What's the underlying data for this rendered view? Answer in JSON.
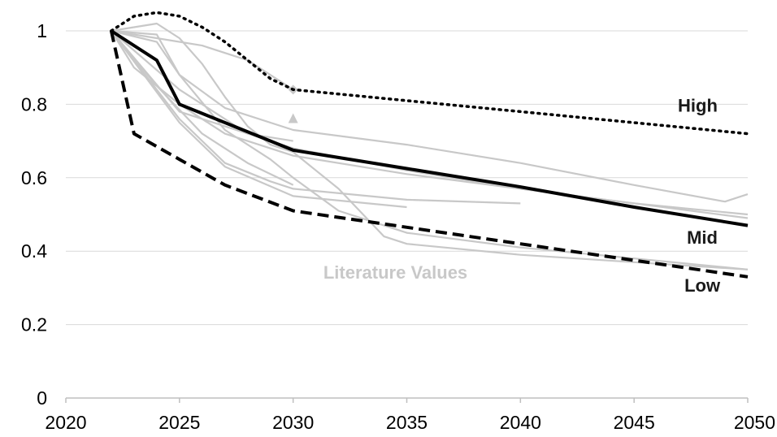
{
  "chart_data": {
    "type": "line",
    "title": "",
    "xlabel": "",
    "ylabel": "",
    "xlim": [
      2020,
      2050
    ],
    "ylim": [
      0,
      1
    ],
    "x_ticks": [
      2020,
      2025,
      2030,
      2035,
      2040,
      2045,
      2050
    ],
    "y_ticks": [
      0,
      0.2,
      0.4,
      0.6,
      0.8,
      1
    ],
    "x_tick_labels": [
      "2020",
      "2025",
      "2030",
      "2035",
      "2040",
      "2045",
      "2050"
    ],
    "y_tick_labels": [
      "0",
      "0.2",
      "0.4",
      "0.6",
      "0.8",
      "1"
    ],
    "grid": "horizontal",
    "colors": {
      "main": "#000000",
      "literature": "#c8c8c8",
      "grid": "#d9d9d9"
    },
    "series": [
      {
        "name": "High",
        "style": "dotted",
        "x": [
          2022,
          2023,
          2024,
          2025,
          2026,
          2027,
          2028,
          2029,
          2030,
          2035,
          2040,
          2045,
          2050
        ],
        "values": [
          1.0,
          1.04,
          1.05,
          1.04,
          1.01,
          0.97,
          0.92,
          0.87,
          0.84,
          0.81,
          0.78,
          0.75,
          0.72
        ]
      },
      {
        "name": "Mid",
        "style": "solid",
        "x": [
          2022,
          2024,
          2025,
          2027,
          2030,
          2035,
          2040,
          2045,
          2050
        ],
        "values": [
          1.0,
          0.92,
          0.8,
          0.75,
          0.675,
          0.625,
          0.575,
          0.52,
          0.47
        ]
      },
      {
        "name": "Low",
        "style": "dashed",
        "x": [
          2022,
          2023,
          2025,
          2027,
          2030,
          2035,
          2040,
          2045,
          2050
        ],
        "values": [
          1.0,
          0.72,
          0.65,
          0.58,
          0.51,
          0.465,
          0.42,
          0.375,
          0.33
        ]
      }
    ],
    "literature_label": "Literature Values",
    "literature_series": [
      {
        "x": [
          2022,
          2024,
          2025,
          2027,
          2030,
          2035,
          2040,
          2045,
          2049,
          2050
        ],
        "values": [
          1.0,
          0.99,
          0.88,
          0.79,
          0.73,
          0.69,
          0.64,
          0.58,
          0.535,
          0.555
        ]
      },
      {
        "x": [
          2022,
          2025,
          2030,
          2035,
          2040,
          2045,
          2050
        ],
        "values": [
          1.0,
          0.78,
          0.68,
          0.62,
          0.57,
          0.53,
          0.49
        ]
      },
      {
        "x": [
          2022,
          2024,
          2025,
          2026,
          2027,
          2028,
          2029,
          2030,
          2032,
          2034,
          2035,
          2040,
          2045,
          2050
        ],
        "values": [
          1.0,
          1.02,
          0.98,
          0.91,
          0.82,
          0.74,
          0.69,
          0.67,
          0.57,
          0.44,
          0.42,
          0.39,
          0.37,
          0.35
        ]
      },
      {
        "x": [
          2022,
          2025,
          2027,
          2029,
          2030,
          2035,
          2040
        ],
        "values": [
          1.0,
          0.76,
          0.64,
          0.59,
          0.57,
          0.54,
          0.53
        ]
      },
      {
        "x": [
          2022,
          2024,
          2025,
          2027,
          2029,
          2030,
          2032,
          2035,
          2040,
          2045,
          2050
        ],
        "values": [
          1.0,
          0.97,
          0.88,
          0.73,
          0.65,
          0.6,
          0.51,
          0.45,
          0.41,
          0.38,
          0.35
        ]
      },
      {
        "x": [
          2022,
          2025,
          2027,
          2030,
          2035
        ],
        "values": [
          1.0,
          0.75,
          0.63,
          0.55,
          0.52
        ]
      },
      {
        "x": [
          2022,
          2024,
          2026,
          2028,
          2030
        ],
        "values": [
          1.0,
          0.85,
          0.72,
          0.64,
          0.58
        ]
      },
      {
        "x": [
          2022,
          2023,
          2025,
          2027,
          2030,
          2035,
          2040,
          2045,
          2050
        ],
        "values": [
          1.0,
          0.9,
          0.8,
          0.72,
          0.66,
          0.61,
          0.57,
          0.53,
          0.5
        ]
      },
      {
        "x": [
          2022,
          2024,
          2026,
          2028,
          2030
        ],
        "values": [
          1.0,
          0.98,
          0.96,
          0.92,
          0.84
        ]
      },
      {
        "x": [
          2022,
          2025,
          2028,
          2030
        ],
        "values": [
          1.0,
          0.84,
          0.72,
          0.7
        ]
      }
    ],
    "literature_markers": [
      {
        "x": 2030,
        "value": 0.84,
        "shape": "diamond"
      },
      {
        "x": 2030,
        "value": 0.76,
        "shape": "triangle"
      }
    ],
    "annotations": [
      {
        "text": "High",
        "x": 2047.8,
        "y": 0.78
      },
      {
        "text": "Mid",
        "x": 2048.0,
        "y": 0.42
      },
      {
        "text": "Low",
        "x": 2048.0,
        "y": 0.29
      },
      {
        "text": "Literature Values",
        "x": 2034.5,
        "y": 0.325
      }
    ]
  }
}
